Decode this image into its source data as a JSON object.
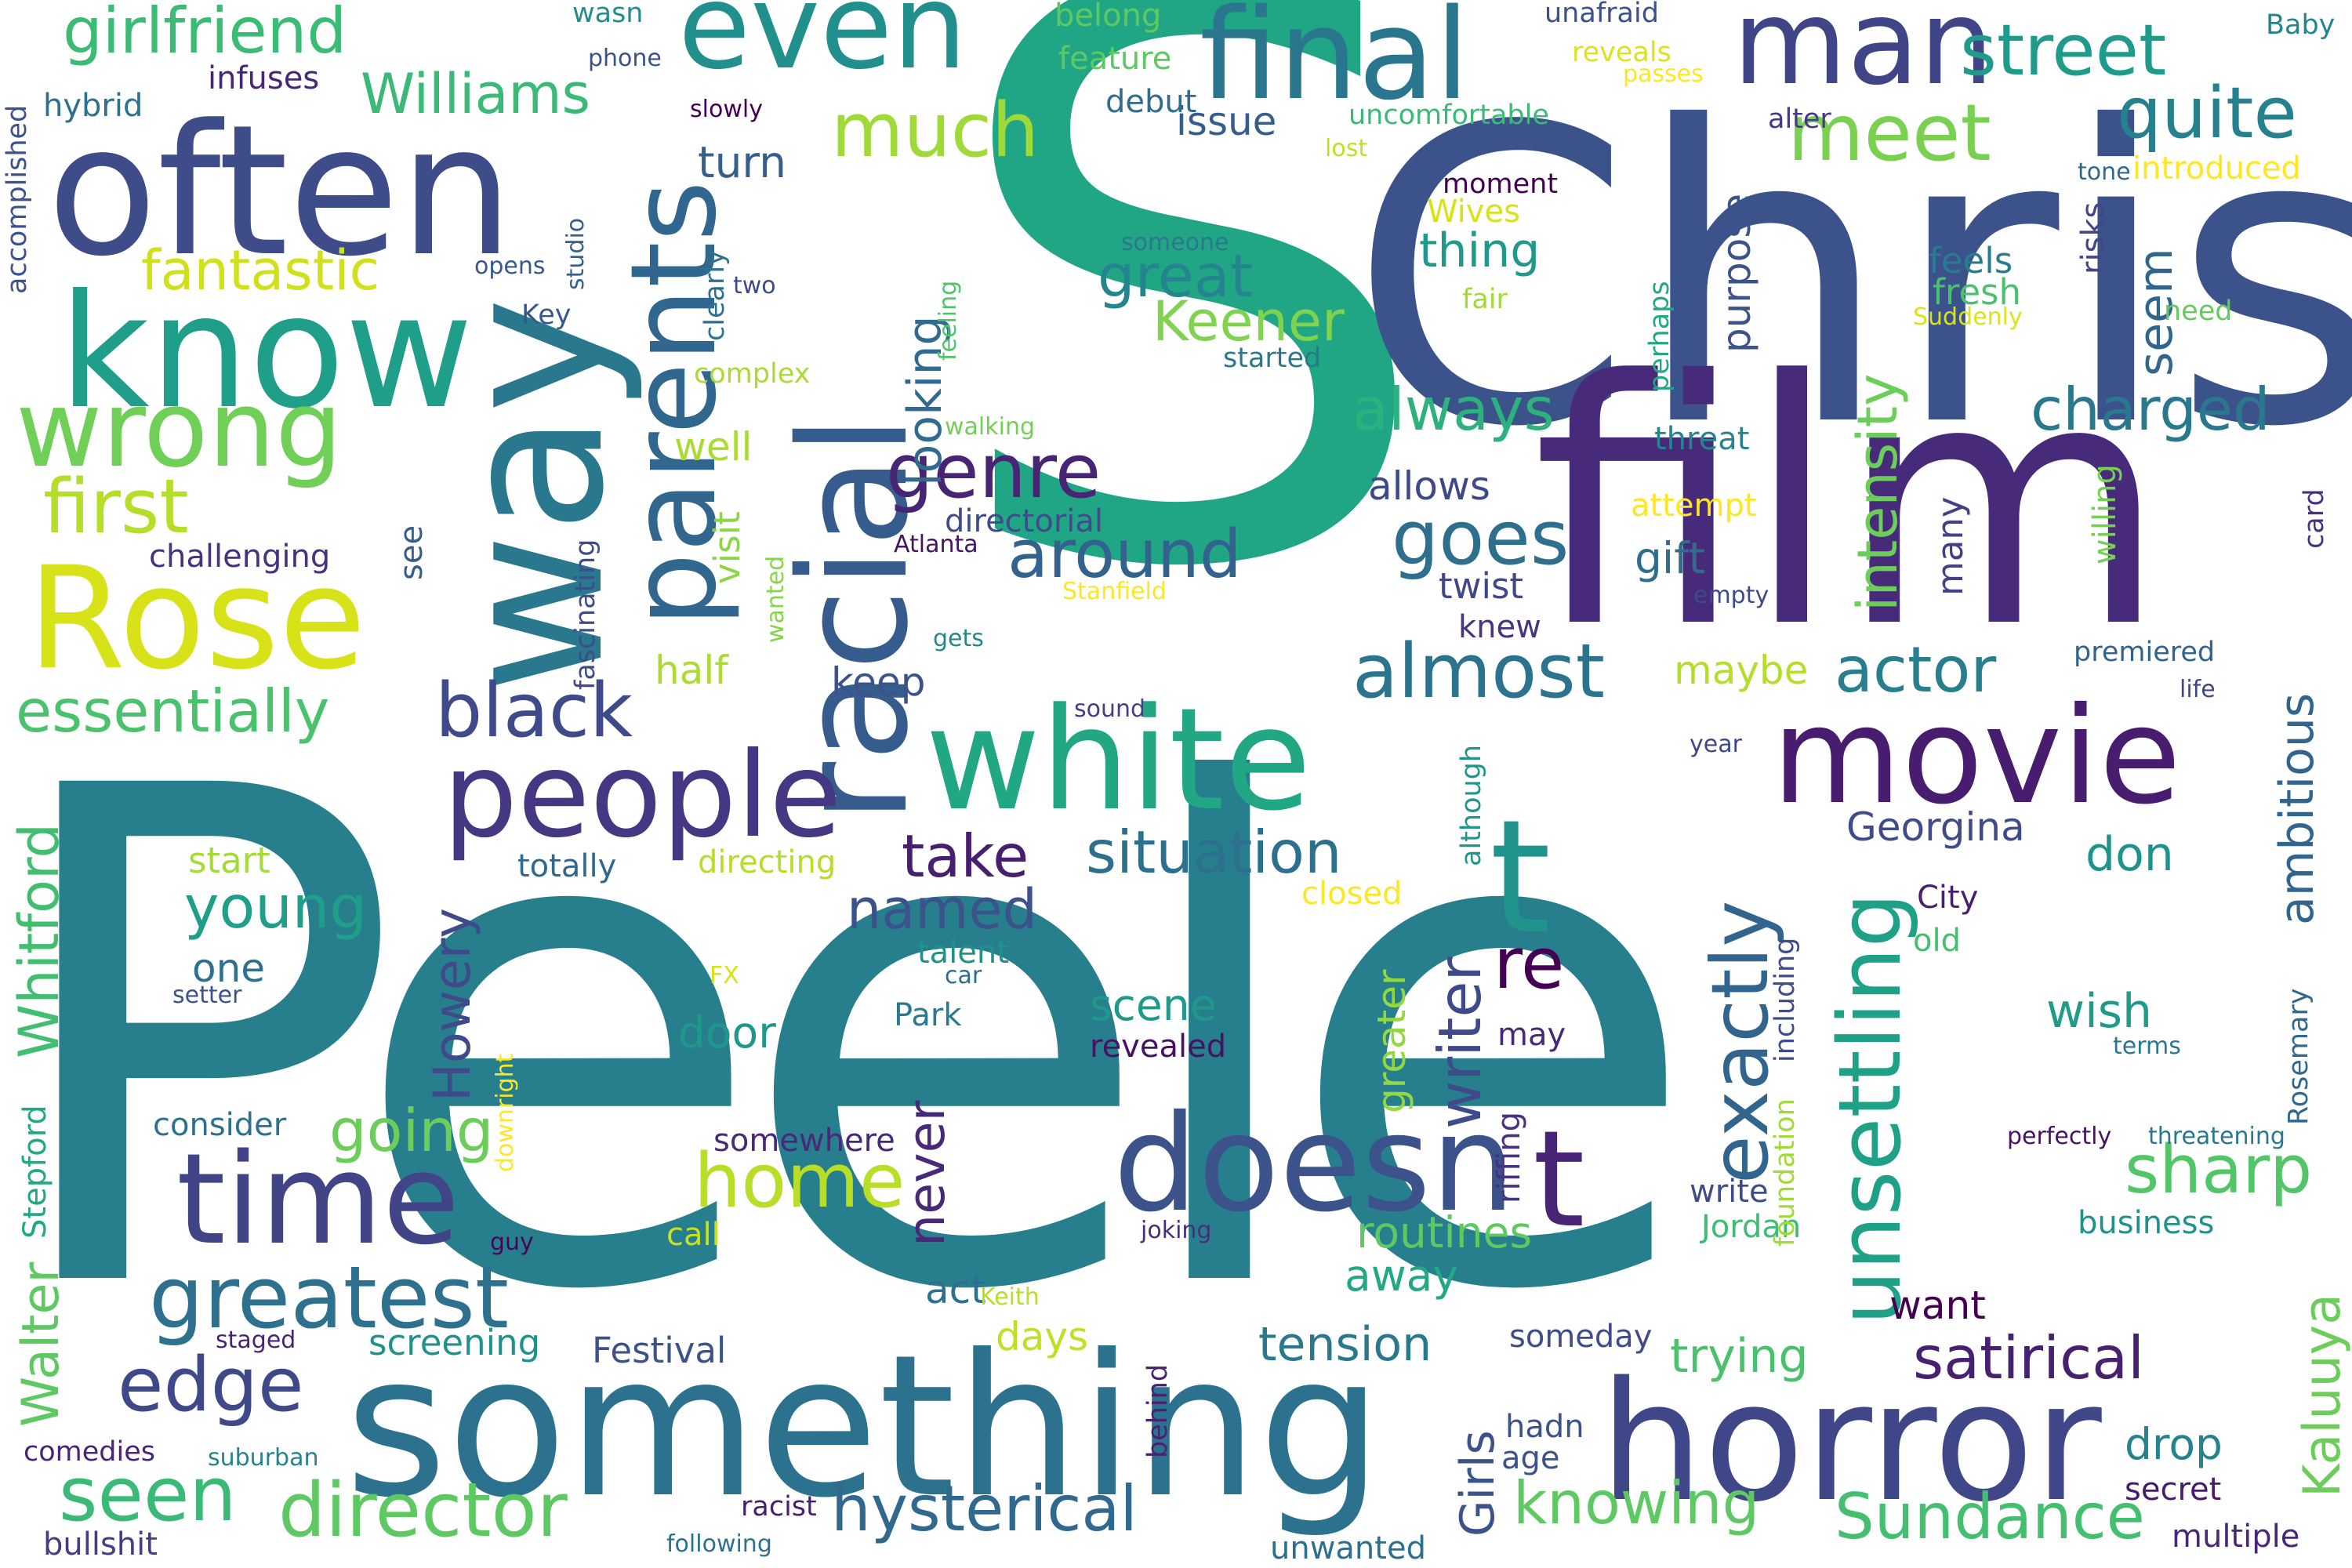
{
  "words": [
    {
      "text": "Peele",
      "color": "#277f8e"
    },
    {
      "text": "S",
      "color": "#21a685"
    },
    {
      "text": "Chris",
      "color": "#3b528b"
    },
    {
      "text": "film",
      "color": "#472a7a"
    },
    {
      "text": "something",
      "color": "#2c728e"
    },
    {
      "text": "horror",
      "color": "#3f4788"
    },
    {
      "text": "often",
      "color": "#3e4c8a"
    },
    {
      "text": "way",
      "color": "#2a788e"
    },
    {
      "text": "white",
      "color": "#22a785"
    },
    {
      "text": "know",
      "color": "#1f9e89"
    },
    {
      "text": "Rose",
      "color": "#d8e219"
    },
    {
      "text": "racial",
      "color": "#365c8d"
    },
    {
      "text": "movie",
      "color": "#481c6e"
    },
    {
      "text": "man",
      "color": "#404588"
    },
    {
      "text": "final",
      "color": "#2a768e"
    },
    {
      "text": "even",
      "color": "#21908d"
    },
    {
      "text": "doesn",
      "color": "#3b528b"
    },
    {
      "text": "t",
      "color": "#20938c"
    },
    {
      "text": "t",
      "color": "#482576"
    },
    {
      "text": "time",
      "color": "#414487"
    },
    {
      "text": "people",
      "color": "#453781"
    },
    {
      "text": "parents",
      "color": "#31678e"
    },
    {
      "text": "wrong",
      "color": "#70cf57"
    },
    {
      "text": "greatest",
      "color": "#2d718e"
    },
    {
      "text": "unsettling",
      "color": "#1fa188"
    },
    {
      "text": "exactly",
      "color": "#32658e"
    },
    {
      "text": "director",
      "color": "#5ec962"
    },
    {
      "text": "hysterical",
      "color": "#31688e"
    },
    {
      "text": "street",
      "color": "#1e9b8a"
    },
    {
      "text": "quite",
      "color": "#26818e"
    },
    {
      "text": "girlfriend",
      "color": "#3cbb75"
    },
    {
      "text": "Sundance",
      "color": "#44bf70"
    },
    {
      "text": "seen",
      "color": "#3aba76"
    },
    {
      "text": "edge",
      "color": "#3f4889"
    },
    {
      "text": "Whitford",
      "color": "#42be71"
    },
    {
      "text": "essentially",
      "color": "#4ac16d"
    },
    {
      "text": "almost",
      "color": "#2c738e"
    },
    {
      "text": "black",
      "color": "#3e4a89"
    },
    {
      "text": "re",
      "color": "#440154"
    },
    {
      "text": "much",
      "color": "#a0da39"
    },
    {
      "text": "meet",
      "color": "#7ad151"
    },
    {
      "text": "first",
      "color": "#b5de2b"
    },
    {
      "text": "fantastic",
      "color": "#d0e11c"
    },
    {
      "text": "Williams",
      "color": "#3aba76"
    },
    {
      "text": "genre",
      "color": "#482475"
    },
    {
      "text": "goes",
      "color": "#2e6f8e"
    },
    {
      "text": "great",
      "color": "#25858e"
    },
    {
      "text": "Keener",
      "color": "#7fd34e"
    },
    {
      "text": "charged",
      "color": "#2a788e"
    },
    {
      "text": "around",
      "color": "#33638d"
    },
    {
      "text": "always",
      "color": "#2db27d"
    },
    {
      "text": "actor",
      "color": "#277f8e"
    },
    {
      "text": "situation",
      "color": "#2d708e"
    },
    {
      "text": "take",
      "color": "#481f70"
    },
    {
      "text": "young",
      "color": "#1f9e89"
    },
    {
      "text": "named",
      "color": "#3b528b"
    },
    {
      "text": "home",
      "color": "#b8de29"
    },
    {
      "text": "going",
      "color": "#6ccd5a"
    },
    {
      "text": "writer",
      "color": "#3e4a89"
    },
    {
      "text": "Howery",
      "color": "#3e4a89"
    },
    {
      "text": "intensity",
      "color": "#6ccd5a"
    },
    {
      "text": "looking",
      "color": "#306a8e"
    },
    {
      "text": "ambitious",
      "color": "#32658e"
    },
    {
      "text": "seem",
      "color": "#32658e"
    },
    {
      "text": "sharp",
      "color": "#52c569"
    },
    {
      "text": "satirical",
      "color": "#482071"
    },
    {
      "text": "knowing",
      "color": "#5ec962"
    },
    {
      "text": "tension",
      "color": "#2a788e"
    },
    {
      "text": "trying",
      "color": "#4ac16d"
    },
    {
      "text": "Girls",
      "color": "#3b528b"
    },
    {
      "text": "Kaluuya",
      "color": "#6ccd5a"
    },
    {
      "text": "Walter",
      "color": "#5ec962"
    },
    {
      "text": "never",
      "color": "#482878"
    },
    {
      "text": "routines",
      "color": "#5ec962"
    },
    {
      "text": "scene",
      "color": "#1f9a8a"
    },
    {
      "text": "door",
      "color": "#1f988b"
    },
    {
      "text": "drop",
      "color": "#26828e"
    },
    {
      "text": "wish",
      "color": "#1e9c89"
    },
    {
      "text": "away",
      "color": "#22a884"
    },
    {
      "text": "turn",
      "color": "#355f8d"
    },
    {
      "text": "issue",
      "color": "#355e8d"
    },
    {
      "text": "debut",
      "color": "#2f6c8e"
    },
    {
      "text": "feature",
      "color": "#5ec962"
    },
    {
      "text": "purpose",
      "color": "#3b528b"
    },
    {
      "text": "thing",
      "color": "#1f9a8a"
    },
    {
      "text": "feels",
      "color": "#297b8e"
    },
    {
      "text": "fresh",
      "color": "#4ac16d"
    },
    {
      "text": "risks",
      "color": "#404688"
    },
    {
      "text": "gift",
      "color": "#2f6c8e"
    },
    {
      "text": "many",
      "color": "#424186"
    },
    {
      "text": "maybe",
      "color": "#b5de2b"
    },
    {
      "text": "keep",
      "color": "#3b528b"
    },
    {
      "text": "half",
      "color": "#addc30"
    },
    {
      "text": "visit",
      "color": "#8bd646"
    },
    {
      "text": "well",
      "color": "#a8db34"
    },
    {
      "text": "allows",
      "color": "#3e4989"
    },
    {
      "text": "twist",
      "color": "#3f4788"
    },
    {
      "text": "knew",
      "color": "#463480"
    },
    {
      "text": "Georgina",
      "color": "#3e4c8a"
    },
    {
      "text": "don",
      "color": "#20928c"
    },
    {
      "text": "City",
      "color": "#481f70"
    },
    {
      "text": "old",
      "color": "#44bf70"
    },
    {
      "text": "premiered",
      "color": "#33638d"
    },
    {
      "text": "life",
      "color": "#3f4788"
    },
    {
      "text": "year",
      "color": "#404688"
    },
    {
      "text": "business",
      "color": "#21918c"
    },
    {
      "text": "Jordan",
      "color": "#3fbc73"
    },
    {
      "text": "write",
      "color": "#3e4c8a"
    },
    {
      "text": "someday",
      "color": "#3e4c8a"
    },
    {
      "text": "want",
      "color": "#440154"
    },
    {
      "text": "act",
      "color": "#2d708e"
    },
    {
      "text": "days",
      "color": "#c2df23"
    },
    {
      "text": "call",
      "color": "#cae11f"
    },
    {
      "text": "screening",
      "color": "#20928c"
    },
    {
      "text": "Festival",
      "color": "#3b528b"
    },
    {
      "text": "start",
      "color": "#a5db36"
    },
    {
      "text": "one",
      "color": "#2c728e"
    },
    {
      "text": "consider",
      "color": "#2d718e"
    },
    {
      "text": "challenging",
      "color": "#46327e"
    },
    {
      "text": "see",
      "color": "#355e8d"
    },
    {
      "text": "totally",
      "color": "#31688e"
    },
    {
      "text": "directing",
      "color": "#b5de2b"
    },
    {
      "text": "closed",
      "color": "#fde725"
    },
    {
      "text": "talent",
      "color": "#21918c"
    },
    {
      "text": "Park",
      "color": "#297a8e"
    },
    {
      "text": "revealed",
      "color": "#471164"
    },
    {
      "text": "somewhere",
      "color": "#482878"
    },
    {
      "text": "joking",
      "color": "#472f7d"
    },
    {
      "text": "racist",
      "color": "#482071"
    },
    {
      "text": "unwanted",
      "color": "#2d708e"
    },
    {
      "text": "following",
      "color": "#2d708e"
    },
    {
      "text": "bullshit",
      "color": "#433e85"
    },
    {
      "text": "comedies",
      "color": "#482576"
    },
    {
      "text": "suburban",
      "color": "#26828e"
    },
    {
      "text": "staged",
      "color": "#482475"
    },
    {
      "text": "guy",
      "color": "#450559"
    },
    {
      "text": "Stepford",
      "color": "#22a884"
    },
    {
      "text": "Wives",
      "color": "#d8e219"
    },
    {
      "text": "moment",
      "color": "#440154"
    },
    {
      "text": "perhaps",
      "color": "#22a884"
    },
    {
      "text": "threat",
      "color": "#25858e"
    },
    {
      "text": "attempt",
      "color": "#fde725"
    },
    {
      "text": "willing",
      "color": "#75d054"
    },
    {
      "text": "card",
      "color": "#46337f"
    },
    {
      "text": "empty",
      "color": "#3e4a89"
    },
    {
      "text": "Stanfield",
      "color": "#fde725"
    },
    {
      "text": "Atlanta",
      "color": "#471365"
    },
    {
      "text": "directorial",
      "color": "#3e4c8a"
    },
    {
      "text": "wanted",
      "color": "#86d549"
    },
    {
      "text": "gets",
      "color": "#24868e"
    },
    {
      "text": "sound",
      "color": "#433e85"
    },
    {
      "text": "although",
      "color": "#1f958b"
    },
    {
      "text": "greater",
      "color": "#93d741"
    },
    {
      "text": "may",
      "color": "#482878"
    },
    {
      "text": "riffing",
      "color": "#46327e"
    },
    {
      "text": "downright",
      "color": "#fde725"
    },
    {
      "text": "FX",
      "color": "#d8e219"
    },
    {
      "text": "car",
      "color": "#2e6e8e"
    },
    {
      "text": "setter",
      "color": "#3b528b"
    },
    {
      "text": "Keith",
      "color": "#b8de29"
    },
    {
      "text": "behind",
      "color": "#482173"
    },
    {
      "text": "hadn",
      "color": "#3b528b"
    },
    {
      "text": "age",
      "color": "#3b528b"
    },
    {
      "text": "secret",
      "color": "#481a6c"
    },
    {
      "text": "multiple",
      "color": "#482878"
    },
    {
      "text": "including",
      "color": "#3e4c8a"
    },
    {
      "text": "foundation",
      "color": "#a2da37"
    },
    {
      "text": "Rosemary",
      "color": "#31688e"
    },
    {
      "text": "Baby",
      "color": "#25858e"
    },
    {
      "text": "terms",
      "color": "#2a788e"
    },
    {
      "text": "perfectly",
      "color": "#471164"
    },
    {
      "text": "threatening",
      "color": "#2a788e"
    },
    {
      "text": "introduced",
      "color": "#fde725"
    },
    {
      "text": "tone",
      "color": "#31688e"
    },
    {
      "text": "alter",
      "color": "#443a83"
    },
    {
      "text": "passes",
      "color": "#fde725"
    },
    {
      "text": "reveals",
      "color": "#dde318"
    },
    {
      "text": "unafraid",
      "color": "#3b528b"
    },
    {
      "text": "uncomfortable",
      "color": "#3aba76"
    },
    {
      "text": "lost",
      "color": "#c2df23"
    },
    {
      "text": "belong",
      "color": "#5ec962"
    },
    {
      "text": "wasn",
      "color": "#228d8d"
    },
    {
      "text": "phone",
      "color": "#3b528b"
    },
    {
      "text": "slowly",
      "color": "#440154"
    },
    {
      "text": "infuses",
      "color": "#482677"
    },
    {
      "text": "hybrid",
      "color": "#2c728e"
    },
    {
      "text": "accomplished",
      "color": "#3b528b"
    },
    {
      "text": "opens",
      "color": "#38588c"
    },
    {
      "text": "studio",
      "color": "#355f8d"
    },
    {
      "text": "clearly",
      "color": "#2c728e"
    },
    {
      "text": "two",
      "color": "#3e4989"
    },
    {
      "text": "Key",
      "color": "#38588c"
    },
    {
      "text": "complex",
      "color": "#a8db34"
    },
    {
      "text": "someone",
      "color": "#2a788e"
    },
    {
      "text": "feeling",
      "color": "#50c46a"
    },
    {
      "text": "walking",
      "color": "#73d056"
    },
    {
      "text": "fair",
      "color": "#a2da37"
    },
    {
      "text": "started",
      "color": "#2a788e"
    },
    {
      "text": "need",
      "color": "#65cb5e"
    },
    {
      "text": "Suddenly",
      "color": "#dde318"
    },
    {
      "text": "fascinating",
      "color": "#3e4c8a"
    }
  ]
}
